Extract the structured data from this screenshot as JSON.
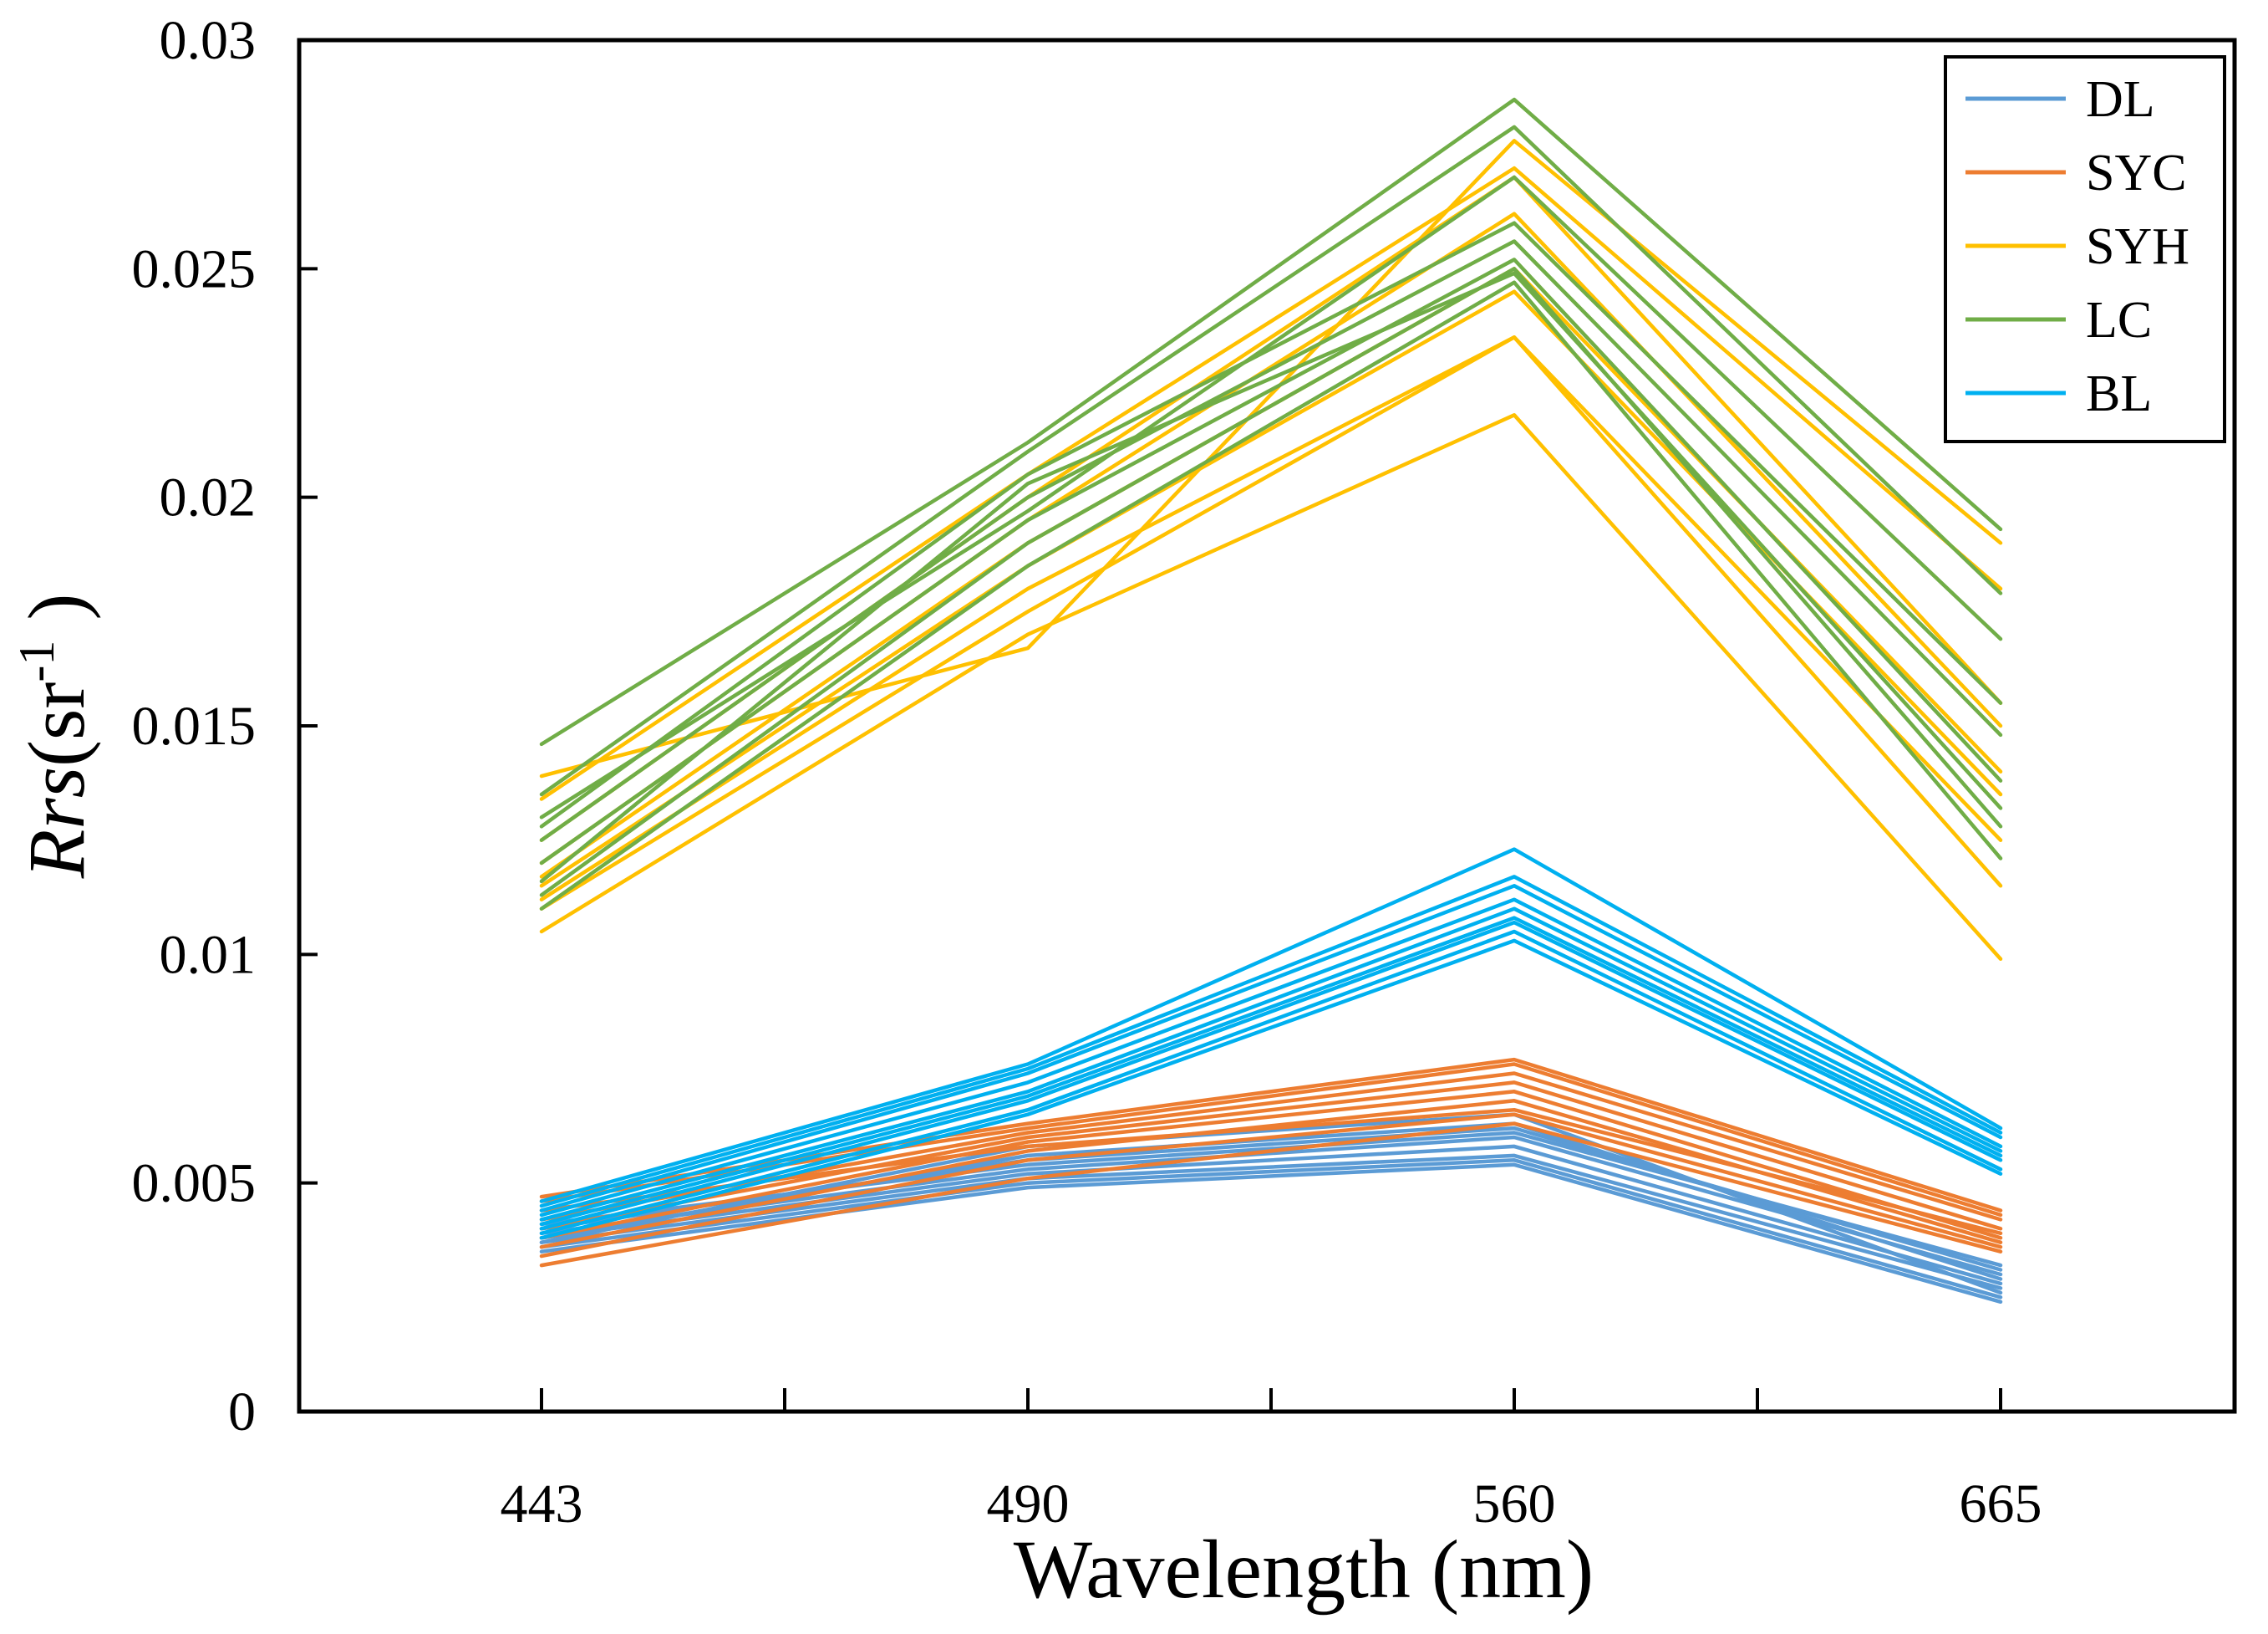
{
  "chart_data": {
    "type": "line",
    "title": "",
    "xlabel": "Wavelength (nm)",
    "ylabel": {
      "italic": "Rrs",
      "text": "(sr",
      "sup": "-1",
      "close": " )"
    },
    "categories": [
      "443",
      "490",
      "560",
      "665"
    ],
    "ylim": [
      0,
      0.03
    ],
    "yticks": [
      "0",
      "0.005",
      "0.01",
      "0.015",
      "0.02",
      "0.025",
      "0.03"
    ],
    "grid": false,
    "legend": {
      "position": "top-right",
      "entries": [
        "DL",
        "SYC",
        "SYH",
        "LC",
        "BL"
      ]
    },
    "groups": [
      {
        "name": "DL",
        "color": "#5B9BD5",
        "lines": [
          [
            0.0035,
            0.0049,
            0.0054,
            0.0024
          ],
          [
            0.0036,
            0.005,
            0.0055,
            0.0025
          ],
          [
            0.0037,
            0.0051,
            0.0056,
            0.0027
          ],
          [
            0.0038,
            0.0052,
            0.0058,
            0.0028
          ],
          [
            0.0039,
            0.0053,
            0.006,
            0.003
          ],
          [
            0.004,
            0.0055,
            0.0062,
            0.0031
          ],
          [
            0.0038,
            0.0056,
            0.0063,
            0.0029
          ],
          [
            0.0041,
            0.0054,
            0.0061,
            0.0032
          ],
          [
            0.0037,
            0.0058,
            0.0065,
            0.0026
          ]
        ]
      },
      {
        "name": "SYC",
        "color": "#ED7D31",
        "lines": [
          [
            0.0032,
            0.0051,
            0.0063,
            0.0035
          ],
          [
            0.0034,
            0.0055,
            0.0065,
            0.0036
          ],
          [
            0.0036,
            0.0057,
            0.0068,
            0.0037
          ],
          [
            0.0038,
            0.0059,
            0.007,
            0.0038
          ],
          [
            0.004,
            0.006,
            0.0072,
            0.004
          ],
          [
            0.0042,
            0.0061,
            0.0074,
            0.0042
          ],
          [
            0.0046,
            0.0062,
            0.0076,
            0.0043
          ],
          [
            0.0047,
            0.0063,
            0.0077,
            0.0044
          ],
          [
            0.0044,
            0.0058,
            0.0066,
            0.0039
          ]
        ]
      },
      {
        "name": "SYH",
        "color": "#FFC000",
        "lines": [
          [
            0.0105,
            0.017,
            0.0218,
            0.0099
          ],
          [
            0.011,
            0.0175,
            0.0235,
            0.0115
          ],
          [
            0.0112,
            0.018,
            0.0235,
            0.0125
          ],
          [
            0.0115,
            0.0185,
            0.0245,
            0.0135
          ],
          [
            0.012,
            0.0195,
            0.0262,
            0.015
          ],
          [
            0.0125,
            0.02,
            0.027,
            0.0155
          ],
          [
            0.0134,
            0.0205,
            0.0272,
            0.018
          ],
          [
            0.0139,
            0.0167,
            0.0278,
            0.019
          ],
          [
            0.0117,
            0.019,
            0.025,
            0.014
          ]
        ]
      },
      {
        "name": "LC",
        "color": "#70AD47",
        "lines": [
          [
            0.011,
            0.0185,
            0.0247,
            0.0121
          ],
          [
            0.0113,
            0.019,
            0.025,
            0.0128
          ],
          [
            0.0116,
            0.0203,
            0.0249,
            0.0132
          ],
          [
            0.012,
            0.0195,
            0.0252,
            0.0138
          ],
          [
            0.0125,
            0.02,
            0.0256,
            0.0148
          ],
          [
            0.0128,
            0.0205,
            0.026,
            0.0155
          ],
          [
            0.013,
            0.0197,
            0.027,
            0.0169
          ],
          [
            0.0135,
            0.021,
            0.0281,
            0.0179
          ],
          [
            0.0146,
            0.0212,
            0.0287,
            0.0193
          ]
        ]
      },
      {
        "name": "BL",
        "color": "#00B0F0",
        "lines": [
          [
            0.0038,
            0.0065,
            0.0103,
            0.0052
          ],
          [
            0.0039,
            0.0066,
            0.0105,
            0.0053
          ],
          [
            0.004,
            0.0068,
            0.0107,
            0.0055
          ],
          [
            0.0041,
            0.0069,
            0.0108,
            0.0056
          ],
          [
            0.0042,
            0.007,
            0.011,
            0.0057
          ],
          [
            0.0043,
            0.0072,
            0.0112,
            0.0058
          ],
          [
            0.0044,
            0.0074,
            0.0115,
            0.006
          ],
          [
            0.0045,
            0.0075,
            0.0117,
            0.0061
          ],
          [
            0.0046,
            0.0076,
            0.0123,
            0.0062
          ]
        ]
      }
    ]
  }
}
